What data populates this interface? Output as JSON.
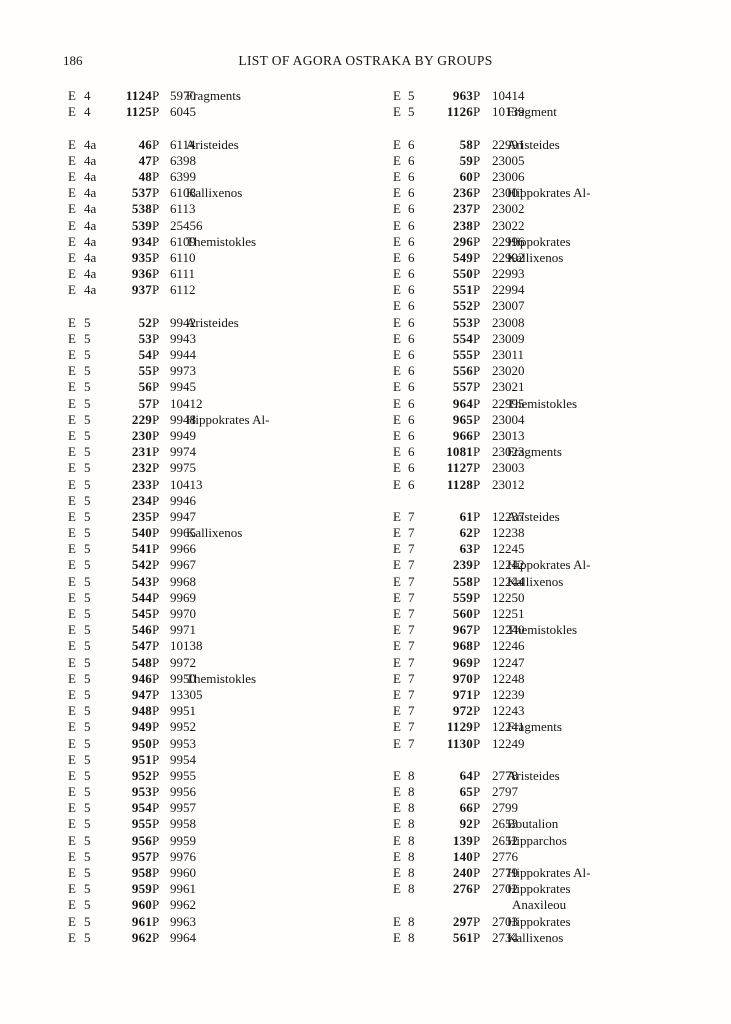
{
  "page": {
    "number": "186",
    "title": "LIST OF AGORA OSTRAKA BY GROUPS"
  },
  "list": {
    "columns": [
      "section",
      "catalog_number",
      "inventory_number",
      "name",
      "name_continuation"
    ],
    "left_groups": [
      {
        "section": "E 4",
        "rows": [
          [
            "1124",
            "P 5970",
            "Fragments"
          ],
          [
            "1125",
            "P 6045",
            ""
          ]
        ]
      },
      {
        "section": "E 4a",
        "rows": [
          [
            "46",
            "P 6114",
            "Aristeides"
          ],
          [
            "47",
            "P 6398",
            ""
          ],
          [
            "48",
            "P 6399",
            ""
          ],
          [
            "537",
            "P 6108",
            "Kallixenos"
          ],
          [
            "538",
            "P 6113",
            ""
          ],
          [
            "539",
            "P 25456",
            ""
          ],
          [
            "934",
            "P 6109",
            "Themistokles"
          ],
          [
            "935",
            "P 6110",
            ""
          ],
          [
            "936",
            "P 6111",
            ""
          ],
          [
            "937",
            "P 6112",
            ""
          ]
        ]
      },
      {
        "section": "E 5",
        "rows": [
          [
            "52",
            "P 9942",
            "Aristeides"
          ],
          [
            "53",
            "P 9943",
            ""
          ],
          [
            "54",
            "P 9944",
            ""
          ],
          [
            "55",
            "P 9973",
            ""
          ],
          [
            "56",
            "P 9945",
            ""
          ],
          [
            "57",
            "P 10412",
            ""
          ],
          [
            "229",
            "P 9948",
            "Hippokrates Al-"
          ],
          [
            "230",
            "P 9949",
            ""
          ],
          [
            "231",
            "P 9974",
            ""
          ],
          [
            "232",
            "P 9975",
            ""
          ],
          [
            "233",
            "P 10413",
            ""
          ],
          [
            "234",
            "P 9946",
            ""
          ],
          [
            "235",
            "P 9947",
            ""
          ],
          [
            "540",
            "P 9965",
            "Kallixenos"
          ],
          [
            "541",
            "P 9966",
            ""
          ],
          [
            "542",
            "P 9967",
            ""
          ],
          [
            "543",
            "P 9968",
            ""
          ],
          [
            "544",
            "P 9969",
            ""
          ],
          [
            "545",
            "P 9970",
            ""
          ],
          [
            "546",
            "P 9971",
            ""
          ],
          [
            "547",
            "P 10138",
            ""
          ],
          [
            "548",
            "P 9972",
            ""
          ],
          [
            "946",
            "P 9950",
            "Themistokles"
          ],
          [
            "947",
            "P 13305",
            ""
          ],
          [
            "948",
            "P 9951",
            ""
          ],
          [
            "949",
            "P 9952",
            ""
          ],
          [
            "950",
            "P 9953",
            ""
          ],
          [
            "951",
            "P 9954",
            ""
          ],
          [
            "952",
            "P 9955",
            ""
          ],
          [
            "953",
            "P 9956",
            ""
          ],
          [
            "954",
            "P 9957",
            ""
          ],
          [
            "955",
            "P 9958",
            ""
          ],
          [
            "956",
            "P 9959",
            ""
          ],
          [
            "957",
            "P 9976",
            ""
          ],
          [
            "958",
            "P 9960",
            ""
          ],
          [
            "959",
            "P 9961",
            ""
          ],
          [
            "960",
            "P 9962",
            ""
          ],
          [
            "961",
            "P 9963",
            ""
          ],
          [
            "962",
            "P 9964",
            ""
          ]
        ]
      }
    ],
    "right_groups": [
      {
        "section": "E 5",
        "rows": [
          [
            "963",
            "P 10414",
            ""
          ],
          [
            "1126",
            "P 10139",
            "Fragment"
          ]
        ]
      },
      {
        "section": "E 6",
        "rows": [
          [
            "58",
            "P 22991",
            "Aristeides"
          ],
          [
            "59",
            "P 23005",
            ""
          ],
          [
            "60",
            "P 23006",
            ""
          ],
          [
            "236",
            "P 23001",
            "Hippokrates Al-"
          ],
          [
            "237",
            "P 23002",
            ""
          ],
          [
            "238",
            "P 23022",
            ""
          ],
          [
            "296",
            "P 22996",
            "Hippokrates"
          ],
          [
            "549",
            "P 22992",
            "Kallixenos"
          ],
          [
            "550",
            "P 22993",
            ""
          ],
          [
            "551",
            "P 22994",
            ""
          ],
          [
            "552",
            "P 23007",
            ""
          ],
          [
            "553",
            "P 23008",
            ""
          ],
          [
            "554",
            "P 23009",
            ""
          ],
          [
            "555",
            "P 23011",
            ""
          ],
          [
            "556",
            "P 23020",
            ""
          ],
          [
            "557",
            "P 23021",
            ""
          ],
          [
            "964",
            "P 22995",
            "Themistokles"
          ],
          [
            "965",
            "P 23004",
            ""
          ],
          [
            "966",
            "P 23013",
            ""
          ],
          [
            "1081",
            "P 23023",
            "Fragments"
          ],
          [
            "1127",
            "P 23003",
            ""
          ],
          [
            "1128",
            "P 23012",
            ""
          ]
        ]
      },
      {
        "section": "E 7",
        "rows": [
          [
            "61",
            "P 12237",
            "Aristeides"
          ],
          [
            "62",
            "P 12238",
            ""
          ],
          [
            "63",
            "P 12245",
            ""
          ],
          [
            "239",
            "P 12242",
            "Hippokrates Al-"
          ],
          [
            "558",
            "P 12244",
            "Kallixenos"
          ],
          [
            "559",
            "P 12250",
            ""
          ],
          [
            "560",
            "P 12251",
            ""
          ],
          [
            "967",
            "P 12240",
            "Themistokles"
          ],
          [
            "968",
            "P 12246",
            ""
          ],
          [
            "969",
            "P 12247",
            ""
          ],
          [
            "970",
            "P 12248",
            ""
          ],
          [
            "971",
            "P 12239",
            ""
          ],
          [
            "972",
            "P 12243",
            ""
          ],
          [
            "1129",
            "P 12241",
            "Fragments"
          ],
          [
            "1130",
            "P 12249",
            ""
          ]
        ]
      },
      {
        "section": "E 8",
        "rows": [
          [
            "64",
            "P 2778",
            "Aristeides"
          ],
          [
            "65",
            "P 2797",
            ""
          ],
          [
            "66",
            "P 2799",
            ""
          ],
          [
            "92",
            "P 2653",
            "Boutalion"
          ],
          [
            "139",
            "P 2652",
            "Hipparchos"
          ],
          [
            "140",
            "P 2776",
            ""
          ],
          [
            "240",
            "P 2779",
            "Hippokrates Al-"
          ],
          [
            "276",
            "P 2702",
            "Hippokrates",
            "Anaxileou"
          ],
          [
            "297",
            "P 2703",
            "Hippokrates"
          ],
          [
            "561",
            "P 2734",
            "Kallixenos"
          ]
        ]
      }
    ]
  }
}
